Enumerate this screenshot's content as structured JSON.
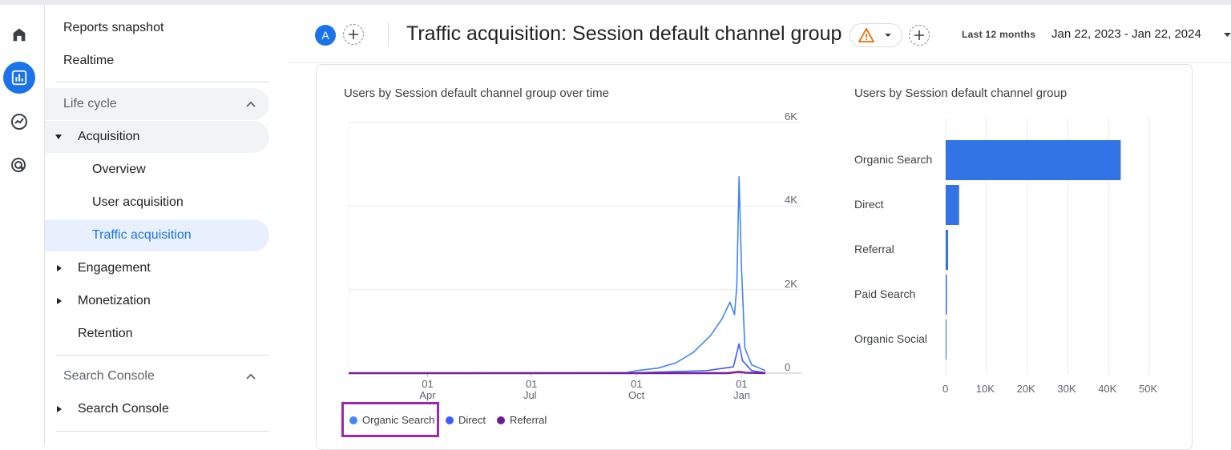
{
  "sidebar": {
    "items": [
      {
        "label": "Reports snapshot"
      },
      {
        "label": "Realtime"
      },
      {
        "label": "Life cycle"
      },
      {
        "label": "Acquisition"
      },
      {
        "label": "Overview"
      },
      {
        "label": "User acquisition"
      },
      {
        "label": "Traffic acquisition"
      },
      {
        "label": "Engagement"
      },
      {
        "label": "Monetization"
      },
      {
        "label": "Retention"
      },
      {
        "label": "Search Console"
      },
      {
        "label": "Search Console"
      }
    ]
  },
  "header": {
    "avatar_letter": "A",
    "title": "Traffic acquisition: Session default channel group",
    "date_range_label": "Last 12 months",
    "date_range": "Jan 22, 2023 - Jan 22, 2024"
  },
  "colors": {
    "organic": "#4285f4",
    "direct": "#3d5afe",
    "referral": "#7b1fa2",
    "bar": "#3273e6",
    "highlight": "#9c27b0"
  },
  "line_chart_title": "Users by Session default channel group over time",
  "bar_chart_title": "Users by Session default channel group",
  "legend": [
    {
      "label": "Organic Search",
      "color": "#4285f4"
    },
    {
      "label": "Direct",
      "color": "#3d5afe"
    },
    {
      "label": "Referral",
      "color": "#6a1b9a"
    }
  ],
  "chart_data": [
    {
      "type": "line",
      "title": "Users by Session default channel group over time",
      "x_ticks": [
        [
          "01",
          "Apr"
        ],
        [
          "01",
          "Jul"
        ],
        [
          "01",
          "Oct"
        ],
        [
          "01",
          "Jan"
        ]
      ],
      "y_ticks": [
        "6K",
        "4K",
        "2K",
        "0"
      ],
      "ylim": [
        0,
        6000
      ],
      "xlim": [
        "2023-01-22",
        "2024-01-22"
      ],
      "series": [
        {
          "name": "Organic Search",
          "points": [
            [
              "2023-01-22",
              0
            ],
            [
              "2023-09-20",
              0
            ],
            [
              "2023-10-01",
              60
            ],
            [
              "2023-10-20",
              120
            ],
            [
              "2023-11-05",
              250
            ],
            [
              "2023-11-20",
              500
            ],
            [
              "2023-12-05",
              900
            ],
            [
              "2023-12-15",
              1300
            ],
            [
              "2023-12-22",
              1700
            ],
            [
              "2023-12-26",
              1400
            ],
            [
              "2023-12-28",
              2100
            ],
            [
              "2023-12-30",
              4700
            ],
            [
              "2024-01-01",
              2600
            ],
            [
              "2024-01-04",
              600
            ],
            [
              "2024-01-10",
              200
            ],
            [
              "2024-01-22",
              60
            ]
          ]
        },
        {
          "name": "Direct",
          "points": [
            [
              "2023-01-22",
              0
            ],
            [
              "2023-10-01",
              10
            ],
            [
              "2023-12-01",
              60
            ],
            [
              "2023-12-25",
              150
            ],
            [
              "2023-12-30",
              700
            ],
            [
              "2024-01-02",
              300
            ],
            [
              "2024-01-10",
              60
            ],
            [
              "2024-01-22",
              10
            ]
          ]
        },
        {
          "name": "Referral",
          "points": [
            [
              "2023-01-22",
              0
            ],
            [
              "2023-12-20",
              0
            ],
            [
              "2023-12-30",
              30
            ],
            [
              "2024-01-05",
              10
            ],
            [
              "2024-01-22",
              0
            ]
          ]
        }
      ]
    },
    {
      "type": "bar",
      "orientation": "horizontal",
      "title": "Users by Session default channel group",
      "categories": [
        "Organic Search",
        "Direct",
        "Referral",
        "Paid Search",
        "Organic Social"
      ],
      "values": [
        43000,
        3300,
        600,
        300,
        50
      ],
      "x_ticks": [
        "0",
        "10K",
        "20K",
        "30K",
        "40K",
        "50K"
      ],
      "xlim": [
        0,
        50000
      ]
    }
  ]
}
